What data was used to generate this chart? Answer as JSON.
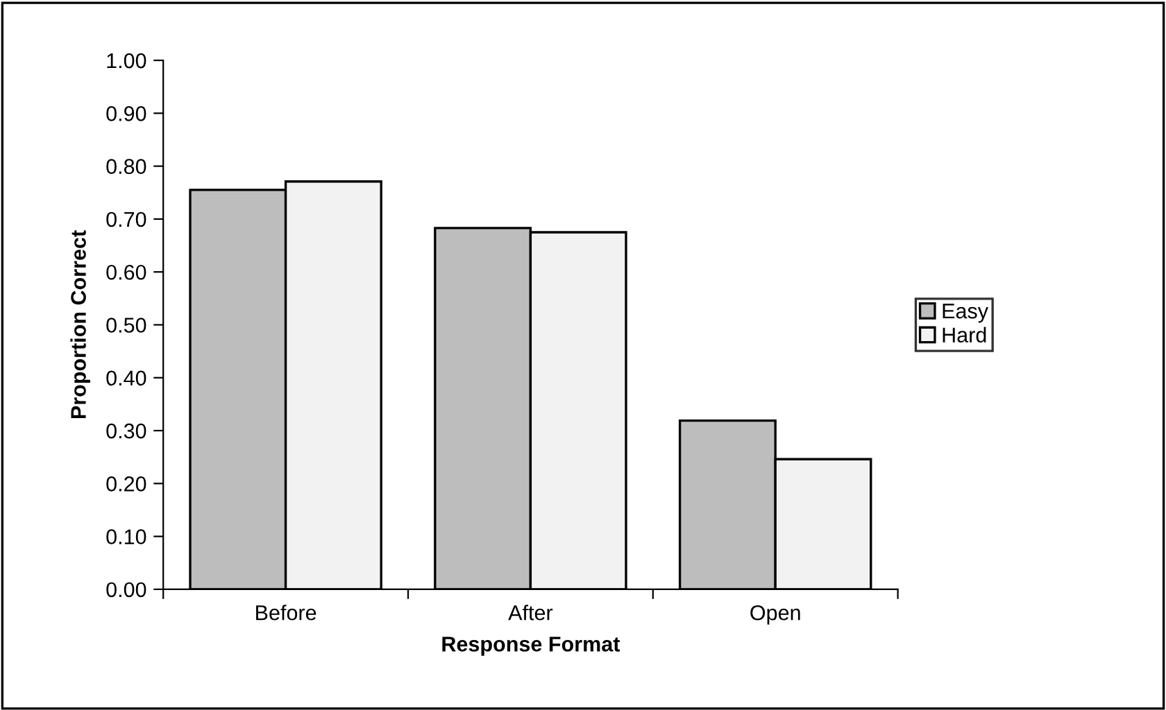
{
  "chart_data": {
    "type": "bar",
    "xlabel": "Response Format",
    "ylabel": "Proportion Correct",
    "categories": [
      "Before",
      "After",
      "Open"
    ],
    "series": [
      {
        "name": "Easy",
        "color": "#bdbdbd",
        "values": [
          0.755,
          0.683,
          0.319
        ]
      },
      {
        "name": "Hard",
        "color": "#f2f2f2",
        "values": [
          0.771,
          0.675,
          0.246
        ]
      }
    ],
    "ylim": [
      0,
      1
    ],
    "yticks": [
      {
        "value": 0,
        "label": "0.00"
      },
      {
        "value": 0.1,
        "label": "0.10"
      },
      {
        "value": 0.2,
        "label": "0.20"
      },
      {
        "value": 0.3,
        "label": "0.30"
      },
      {
        "value": 0.4,
        "label": "0.40"
      },
      {
        "value": 0.5,
        "label": "0.50"
      },
      {
        "value": 0.6,
        "label": "0.60"
      },
      {
        "value": 0.7,
        "label": "0.70"
      },
      {
        "value": 0.8,
        "label": "0.80"
      },
      {
        "value": 0.9,
        "label": "0.90"
      },
      {
        "value": 1,
        "label": "1.00"
      }
    ],
    "grid": false,
    "legend": "right"
  }
}
